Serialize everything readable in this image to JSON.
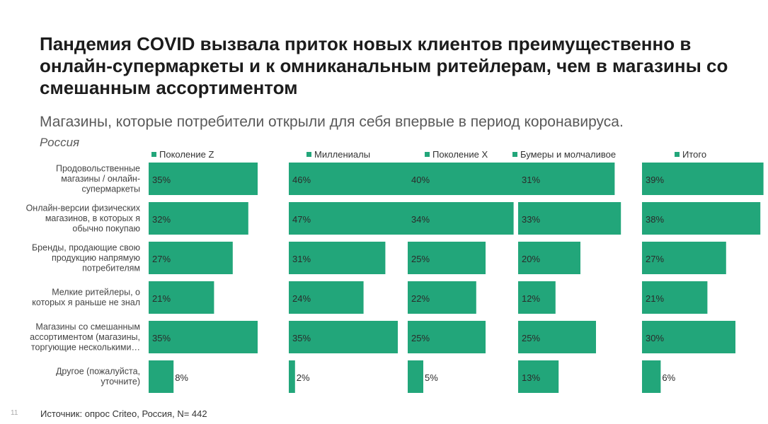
{
  "title": "Пандемия COVID вызвала приток новых клиентов преимущественно в онлайн-супермаркеты и к омниканальным ритейлерам, чем в магазины со смешанным ассортиментом",
  "subtitle": "Магазины, которые потребители открыли для себя впервые в период коронавируса.",
  "region": "Россия",
  "footer": "Источник: опрос Criteo, Россия, N= 442",
  "page_number": "11",
  "colors": {
    "bar": "#22a67a",
    "text": "#333333"
  },
  "chart_data": {
    "type": "bar",
    "orientation": "horizontal",
    "layout": "small-multiples",
    "categories": [
      "Продовольственные магазины / онлайн-супермаркеты",
      "Онлайн-версии физических магазинов, в которых я обычно покупаю",
      "Бренды, продающие свою продукцию напрямую потребителям",
      "Мелкие ритейлеры, о которых я раньше не знал",
      "Магазины со смешанным ассортиментом (магазины, торгующие несколькими…",
      "Другое (пожалуйста, уточните)"
    ],
    "category_lines": [
      [
        "Продовольственные",
        "магазины / онлайн-",
        "супермаркеты"
      ],
      [
        "Онлайн-версии физических",
        "магазинов, в которых я",
        "обычно покупаю"
      ],
      [
        "Бренды, продающие свою",
        "продукцию напрямую",
        "потребителям"
      ],
      [
        "Мелкие ритейлеры, о",
        "которых я раньше не знал"
      ],
      [
        "Магазины со смешанным",
        "ассортиментом (магазины,",
        "торгующие несколькими…"
      ],
      [
        "Другое (пожалуйста,",
        "уточните)"
      ]
    ],
    "series": [
      {
        "name": "Поколение Z",
        "values": [
          35,
          32,
          27,
          21,
          35,
          8
        ],
        "labels": [
          "35%",
          "32%",
          "27%",
          "21%",
          "35%",
          "8%"
        ]
      },
      {
        "name": "Миллениалы",
        "values": [
          46,
          47,
          31,
          24,
          35,
          2
        ],
        "labels": [
          "46%",
          "47%",
          "31%",
          "24%",
          "35%",
          "2%"
        ]
      },
      {
        "name": "Поколение X",
        "values": [
          40,
          34,
          25,
          22,
          25,
          5
        ],
        "labels": [
          "40%",
          "34%",
          "25%",
          "22%",
          "25%",
          "5%"
        ]
      },
      {
        "name": "Бумеры и молчаливое",
        "values": [
          31,
          33,
          20,
          12,
          25,
          13
        ],
        "labels": [
          "31%",
          "33%",
          "20%",
          "12%",
          "25%",
          "13%"
        ]
      },
      {
        "name": "Итого",
        "values": [
          39,
          38,
          27,
          21,
          30,
          6
        ],
        "labels": [
          "39%",
          "38%",
          "27%",
          "21%",
          "30%",
          "6%"
        ]
      }
    ],
    "legend_position": "top",
    "grid": false
  }
}
